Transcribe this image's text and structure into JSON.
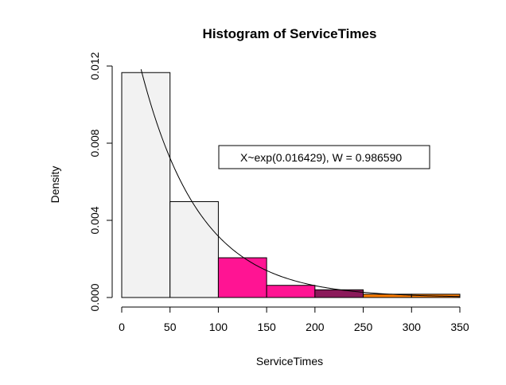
{
  "chart_data": {
    "type": "bar",
    "title": "Histogram of ServiceTimes",
    "xlabel": "ServiceTimes",
    "ylabel": "Density",
    "xlim": [
      0,
      350
    ],
    "ylim": [
      0,
      0.012
    ],
    "x_ticks": [
      "0",
      "50",
      "100",
      "150",
      "200",
      "250",
      "300",
      "350"
    ],
    "y_ticks": [
      "0.000",
      "0.004",
      "0.008",
      "0.012"
    ],
    "bins": [
      {
        "from": 0,
        "to": 50,
        "density": 0.01166,
        "color": "#f2f2f2"
      },
      {
        "from": 50,
        "to": 100,
        "density": 0.00497,
        "color": "#f2f2f2"
      },
      {
        "from": 100,
        "to": 150,
        "density": 0.00206,
        "color": "#ff1493"
      },
      {
        "from": 150,
        "to": 200,
        "density": 0.00063,
        "color": "#ff1493"
      },
      {
        "from": 200,
        "to": 250,
        "density": 0.0004,
        "color": "#8b1a5a"
      },
      {
        "from": 250,
        "to": 300,
        "density": 0.00017,
        "color": "#ff7f00"
      },
      {
        "from": 300,
        "to": 350,
        "density": 0.00017,
        "color": "#ff7f00"
      }
    ],
    "curve": {
      "type": "exponential-density",
      "rate": 0.016429,
      "x_from": 20,
      "x_to": 350
    },
    "legend": {
      "text": "X~exp(0.016429), W = 0.986590",
      "placement": "top-right"
    }
  }
}
